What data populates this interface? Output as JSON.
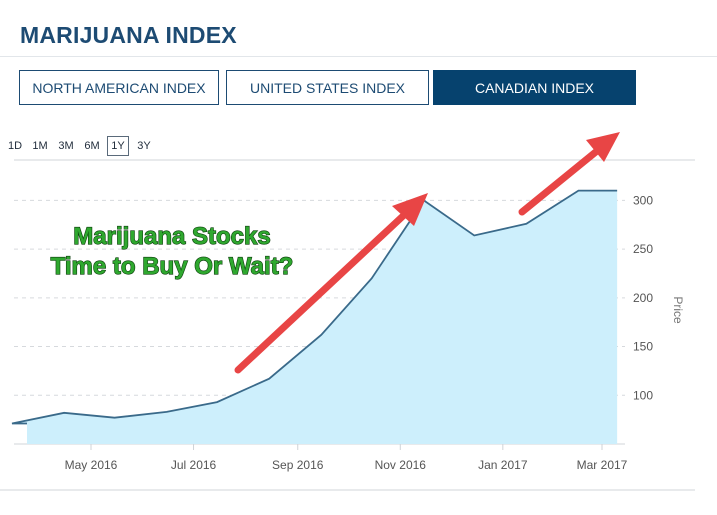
{
  "page": {
    "title": "MARIJUANA INDEX"
  },
  "tabs": [
    {
      "label": "NORTH AMERICAN INDEX",
      "active": false
    },
    {
      "label": "UNITED STATES INDEX",
      "active": false
    },
    {
      "label": "CANADIAN INDEX",
      "active": true
    }
  ],
  "ranges": [
    {
      "label": "1D",
      "active": false
    },
    {
      "label": "1M",
      "active": false
    },
    {
      "label": "3M",
      "active": false
    },
    {
      "label": "6M",
      "active": false
    },
    {
      "label": "1Y",
      "active": true
    },
    {
      "label": "3Y",
      "active": false
    }
  ],
  "overlay": {
    "line1": "Marijuana Stocks",
    "line2": "Time to Buy Or Wait?",
    "color": "#2fa82f",
    "arrow_color": "#e84545"
  },
  "colors": {
    "line": "#3a6a8a",
    "area": "#cdeffc",
    "tab_active": "#06426e"
  },
  "chart_data": {
    "type": "area",
    "x": [
      "2016-03-15",
      "2016-04-15",
      "2016-05-15",
      "2016-06-15",
      "2016-07-15",
      "2016-08-15",
      "2016-09-15",
      "2016-10-15",
      "2016-11-15",
      "2016-12-15",
      "2017-01-15",
      "2017-02-15",
      "2017-03-10"
    ],
    "values": [
      71,
      82,
      77,
      83,
      93,
      117,
      162,
      220,
      300,
      264,
      276,
      310,
      310
    ],
    "xticks": [
      "May 2016",
      "Jul 2016",
      "Sep 2016",
      "Nov 2016",
      "Jan 2017",
      "Mar 2017"
    ],
    "xtick_dates": [
      "2016-05-01",
      "2016-07-01",
      "2016-09-01",
      "2016-11-01",
      "2017-01-01",
      "2017-03-01"
    ],
    "yticks": [
      100,
      150,
      200,
      250,
      300
    ],
    "ylabel": "Price",
    "ylim": [
      50,
      325
    ],
    "grid": true,
    "axis_side": "right"
  }
}
